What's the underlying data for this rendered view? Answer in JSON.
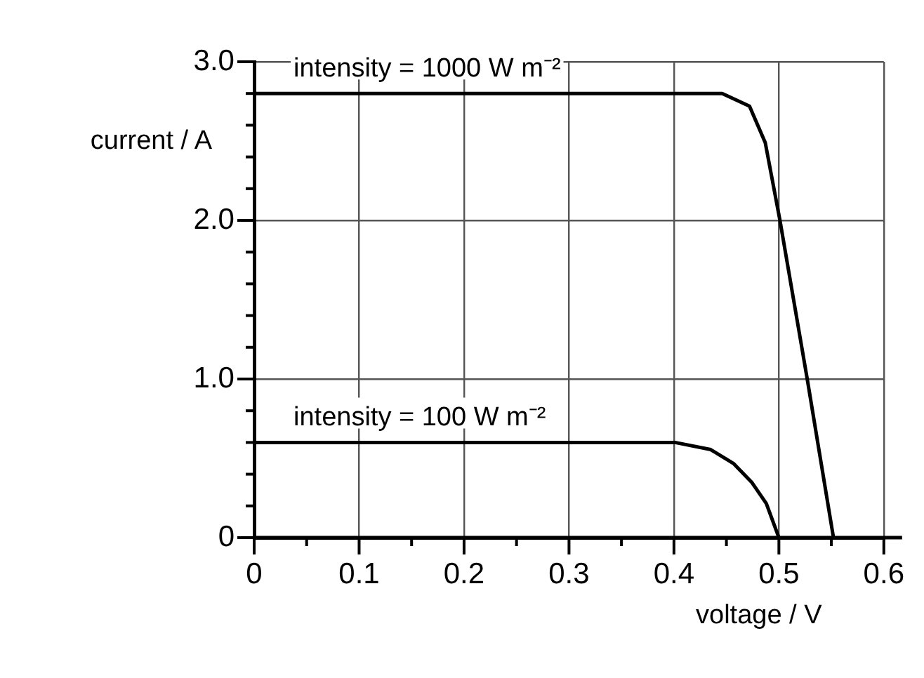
{
  "chart_data": {
    "type": "line",
    "xlabel": "voltage / V",
    "ylabel": "current / A",
    "xlim": [
      0,
      0.6
    ],
    "ylim": [
      0,
      3
    ],
    "xticks": [
      0,
      {
        "value": 0.05,
        "label": null
      },
      0.1,
      {
        "value": 0.15,
        "label": null
      },
      0.2,
      {
        "value": 0.25,
        "label": null
      },
      0.3,
      {
        "value": 0.35,
        "label": null
      },
      0.4,
      {
        "value": 0.45,
        "label": null
      },
      0.5,
      {
        "value": 0.55,
        "label": null
      },
      0.6
    ],
    "yticks": [
      0,
      {
        "value": 0.2,
        "label": null
      },
      {
        "value": 0.4,
        "label": null
      },
      {
        "value": 0.6,
        "label": null
      },
      {
        "value": 0.8,
        "label": null
      },
      {
        "value": 1,
        "label": "1.0"
      },
      {
        "value": 1.2,
        "label": null
      },
      {
        "value": 1.4,
        "label": null
      },
      {
        "value": 1.6,
        "label": null
      },
      {
        "value": 1.8,
        "label": null
      },
      {
        "value": 2,
        "label": "2.0"
      },
      {
        "value": 2.2,
        "label": null
      },
      {
        "value": 2.4,
        "label": null
      },
      {
        "value": 2.6,
        "label": null
      },
      {
        "value": 2.8,
        "label": null
      },
      {
        "value": 3,
        "label": "3.0"
      }
    ],
    "grid": true,
    "marker": "none",
    "line_style": "solid",
    "series": [
      {
        "name": "intensity = 1000 W m⁻²",
        "color": "#000000",
        "x": [
          0,
          0.446,
          0.472,
          0.487,
          0.501,
          0.527,
          0.552
        ],
        "values": [
          2.8,
          2.8,
          2.72,
          2.49,
          2.0,
          1.0,
          0
        ]
      },
      {
        "name": "intensity = 100 W m⁻²",
        "color": "#000000",
        "x": [
          0,
          0.401,
          0.435,
          0.457,
          0.474,
          0.488,
          0.5
        ],
        "values": [
          0.6,
          0.6,
          0.555,
          0.466,
          0.35,
          0.215,
          0
        ]
      }
    ]
  }
}
